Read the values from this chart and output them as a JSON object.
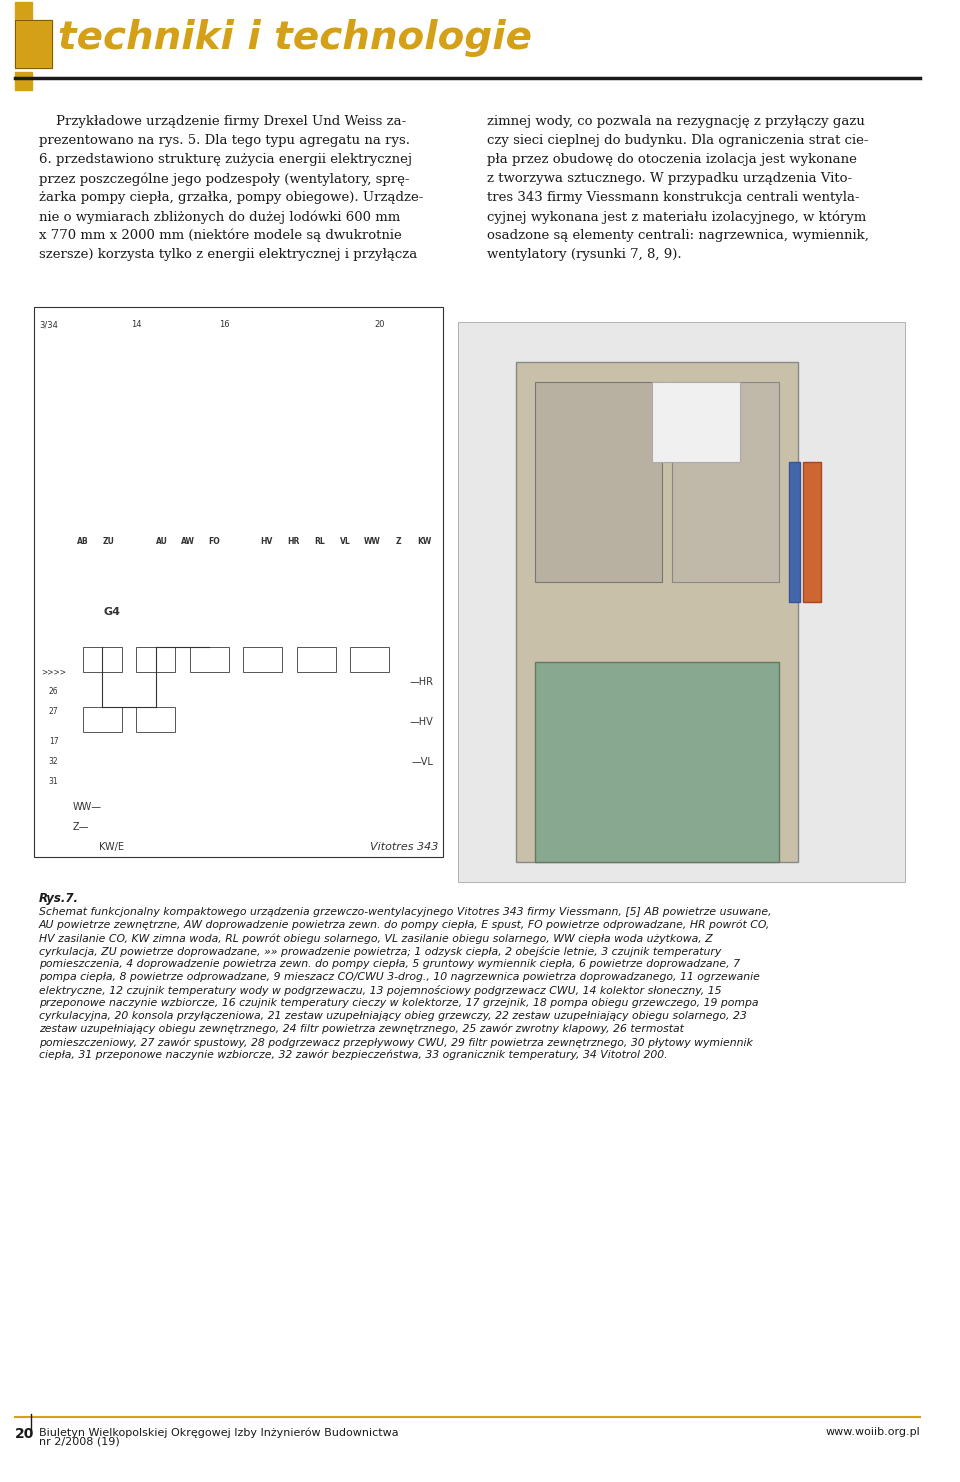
{
  "page_bg": "#ffffff",
  "header_bg": "#ffffff",
  "header_text": "techniki i technologie",
  "header_text_color": "#D4A017",
  "header_line_color": "#1a1a1a",
  "header_rect_color": "#D4A017",
  "header_rect_border": "#5a4000",
  "footer_bg": "#ffffff",
  "footer_line_color": "#D4A017",
  "footer_page_num": "20",
  "footer_left": "Biuletyn Wielkopolskiej Okręgowej Izby Inżynierów Budownictwa",
  "footer_left2": "nr 2/2008 (19)",
  "footer_right": "www.woiib.org.pl",
  "footer_text_color": "#1a1a1a",
  "col1_text_lines": [
    "    Przykładowe urządzenie firmy Drexel Und Weiss za-",
    "prezentowano na rys. 5. Dla tego typu agregatu na rys.",
    "6. przedstawiono strukturę zużycia energii elektrycznej",
    "przez poszczególne jego podzespoły (wentylatory, sprę-",
    "żarka pompy ciepła, grzałka, pompy obiegowe). Urządze-",
    "nie o wymiarach zbliżonych do dużej lodówki 600 mm",
    "x 770 mm x 2000 mm (niektóre modele są dwukrotnie",
    "szersze) korzysta tylko z energii elektrycznej i przyłącza"
  ],
  "col2_text_lines": [
    "zimnej wody, co pozwala na rezygnację z przyłączy gazu",
    "czy sieci cieplnej do budynku. Dla ograniczenia strat cie-",
    "pła przez obudowę do otoczenia izolacja jest wykonane",
    "z tworzywa sztucznego. W przypadku urządzenia Vito-",
    "tres 343 firmy Viessmann konstrukcja centrali wentyla-",
    "cyjnej wykonana jest z materiału izolacyjnego, w którym",
    "osadzone są elementy centrali: nagrzewnica, wymiennik,",
    "wentylatory (rysunki 7, 8, 9)."
  ],
  "rys7_caption": "Rys.7.",
  "caption_italic_text": "Schemat funkcjonalny kompaktowego urządzenia grzewczo-wentylacyjnego Vitotres 343 firmy Viessmann, [5] AB powietrze usuwane, AU powietrze zewnętrzne, AW doprowadzenie powietrza zewn. do pompy ciepła, E spust, FO powietrze odprowadzane, HR powrót CO, HV zasilanie CO, KW zimna woda, RL powrót obiegu solarnego, VL zasilanie obiegu solarnego, WW ciepła woda użytkowa, Z cyrkulacja, ZU powietrze doprowadzane, »» prowadzenie powietrza; 1 odzysk ciepła, 2 obejście letnie, 3 czujnik temperatury pomieszczenia, 4 doprowadzenie powietrza zewn. do pompy ciepła, 5 gruntowy wymiennik ciepła, 6 powietrze doprowadzane, 7 pompa ciepła, 8 powietrze odprowadzane, 9 mieszacz CO/CWU 3-drog., 10 nagrzewnica powietrza doprowadzanego, 11 ogrzewanie elektryczne, 12 czujnik temperatury wody w podgrzewaczu, 13 pojemnościowy podgrzewacz CWU, 14 kolektor słoneczny, 15 przeponowe naczynie wzbiorcze, 16 czujnik temperatury cieczy w kolektorze, 17 grzejnik, 18 pompa obiegu grzewczego, 19 pompa cyrkulacyjna, 20 konsola przyłączeniowa, 21 zestaw uzupełniający obieg grzewczy, 22 zestaw uzupełniający obiegu solarnego, 23 zestaw uzupełniający obiegu zewnętrznego, 24 filtr powietrza zewnętrznego, 25 zawór zwrotny klapowy, 26 termostat pomieszczeniowy, 27 zawór spustowy, 28 podgrzewacz przepływowy CWU, 29 filtr powietrza zewnętrznego, 30 płytowy wymiennik ciepła, 31 przeponowe naczynie wzbiorcze, 32 zawór bezpieczeństwa, 33 ogranicznik temperatury, 34 Vitotrol 200.",
  "text_color": "#1a1a1a",
  "diagram_color": "#2a2a2a",
  "image_placeholder_color": "#cccccc"
}
